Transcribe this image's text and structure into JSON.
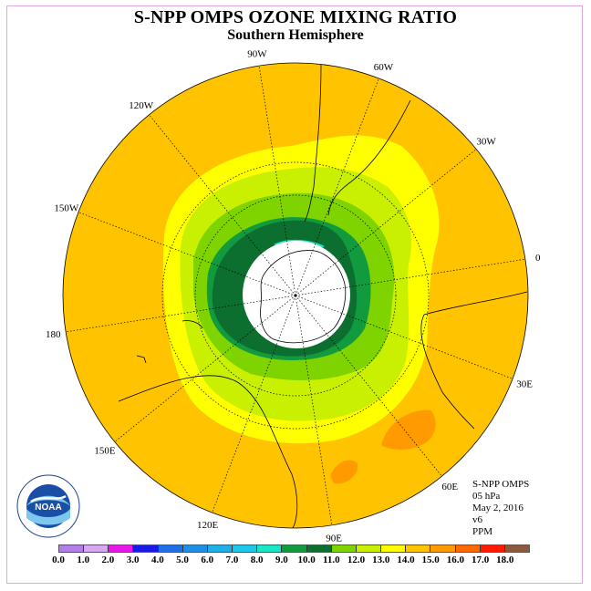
{
  "title": "S-NPP OMPS OZONE MIXING RATIO",
  "subtitle": "Southern Hemisphere",
  "longitude_labels": [
    "90W",
    "60W",
    "30W",
    "0",
    "30E",
    "60E",
    "90E",
    "120E",
    "150E",
    "180",
    "150W",
    "120W"
  ],
  "info": {
    "instrument": "S-NPP OMPS",
    "level": "05 hPa",
    "date": "May 2, 2016",
    "version": "v6",
    "units": "PPM"
  },
  "legend": {
    "colors": [
      "#b27fe8",
      "#d9a6f2",
      "#e619e6",
      "#1a1ae6",
      "#1f6fe6",
      "#1f8fe6",
      "#1fafe6",
      "#1fc8e6",
      "#1ae6c8",
      "#129a3f",
      "#0d6f2f",
      "#7fd400",
      "#c8f000",
      "#ffff00",
      "#ffc300",
      "#ff9a00",
      "#ff6a00",
      "#ff1a00",
      "#8b5a3c"
    ],
    "ticks": [
      "0.0",
      "1.0",
      "2.0",
      "3.0",
      "4.0",
      "5.0",
      "6.0",
      "7.0",
      "8.0",
      "9.0",
      "10.0",
      "11.0",
      "12.0",
      "13.0",
      "14.0",
      "15.0",
      "16.0",
      "17.0",
      "18.0"
    ]
  },
  "logo_text": "NOAA",
  "map_colors": {
    "orange": "#ffc300",
    "dark_orange": "#ff9a00",
    "yellow": "#ffff00",
    "light_green": "#c8f000",
    "green": "#7fd400",
    "mid_green": "#129a3f",
    "dark_green": "#0d6f2f",
    "cyan": "#1ae6c8"
  }
}
